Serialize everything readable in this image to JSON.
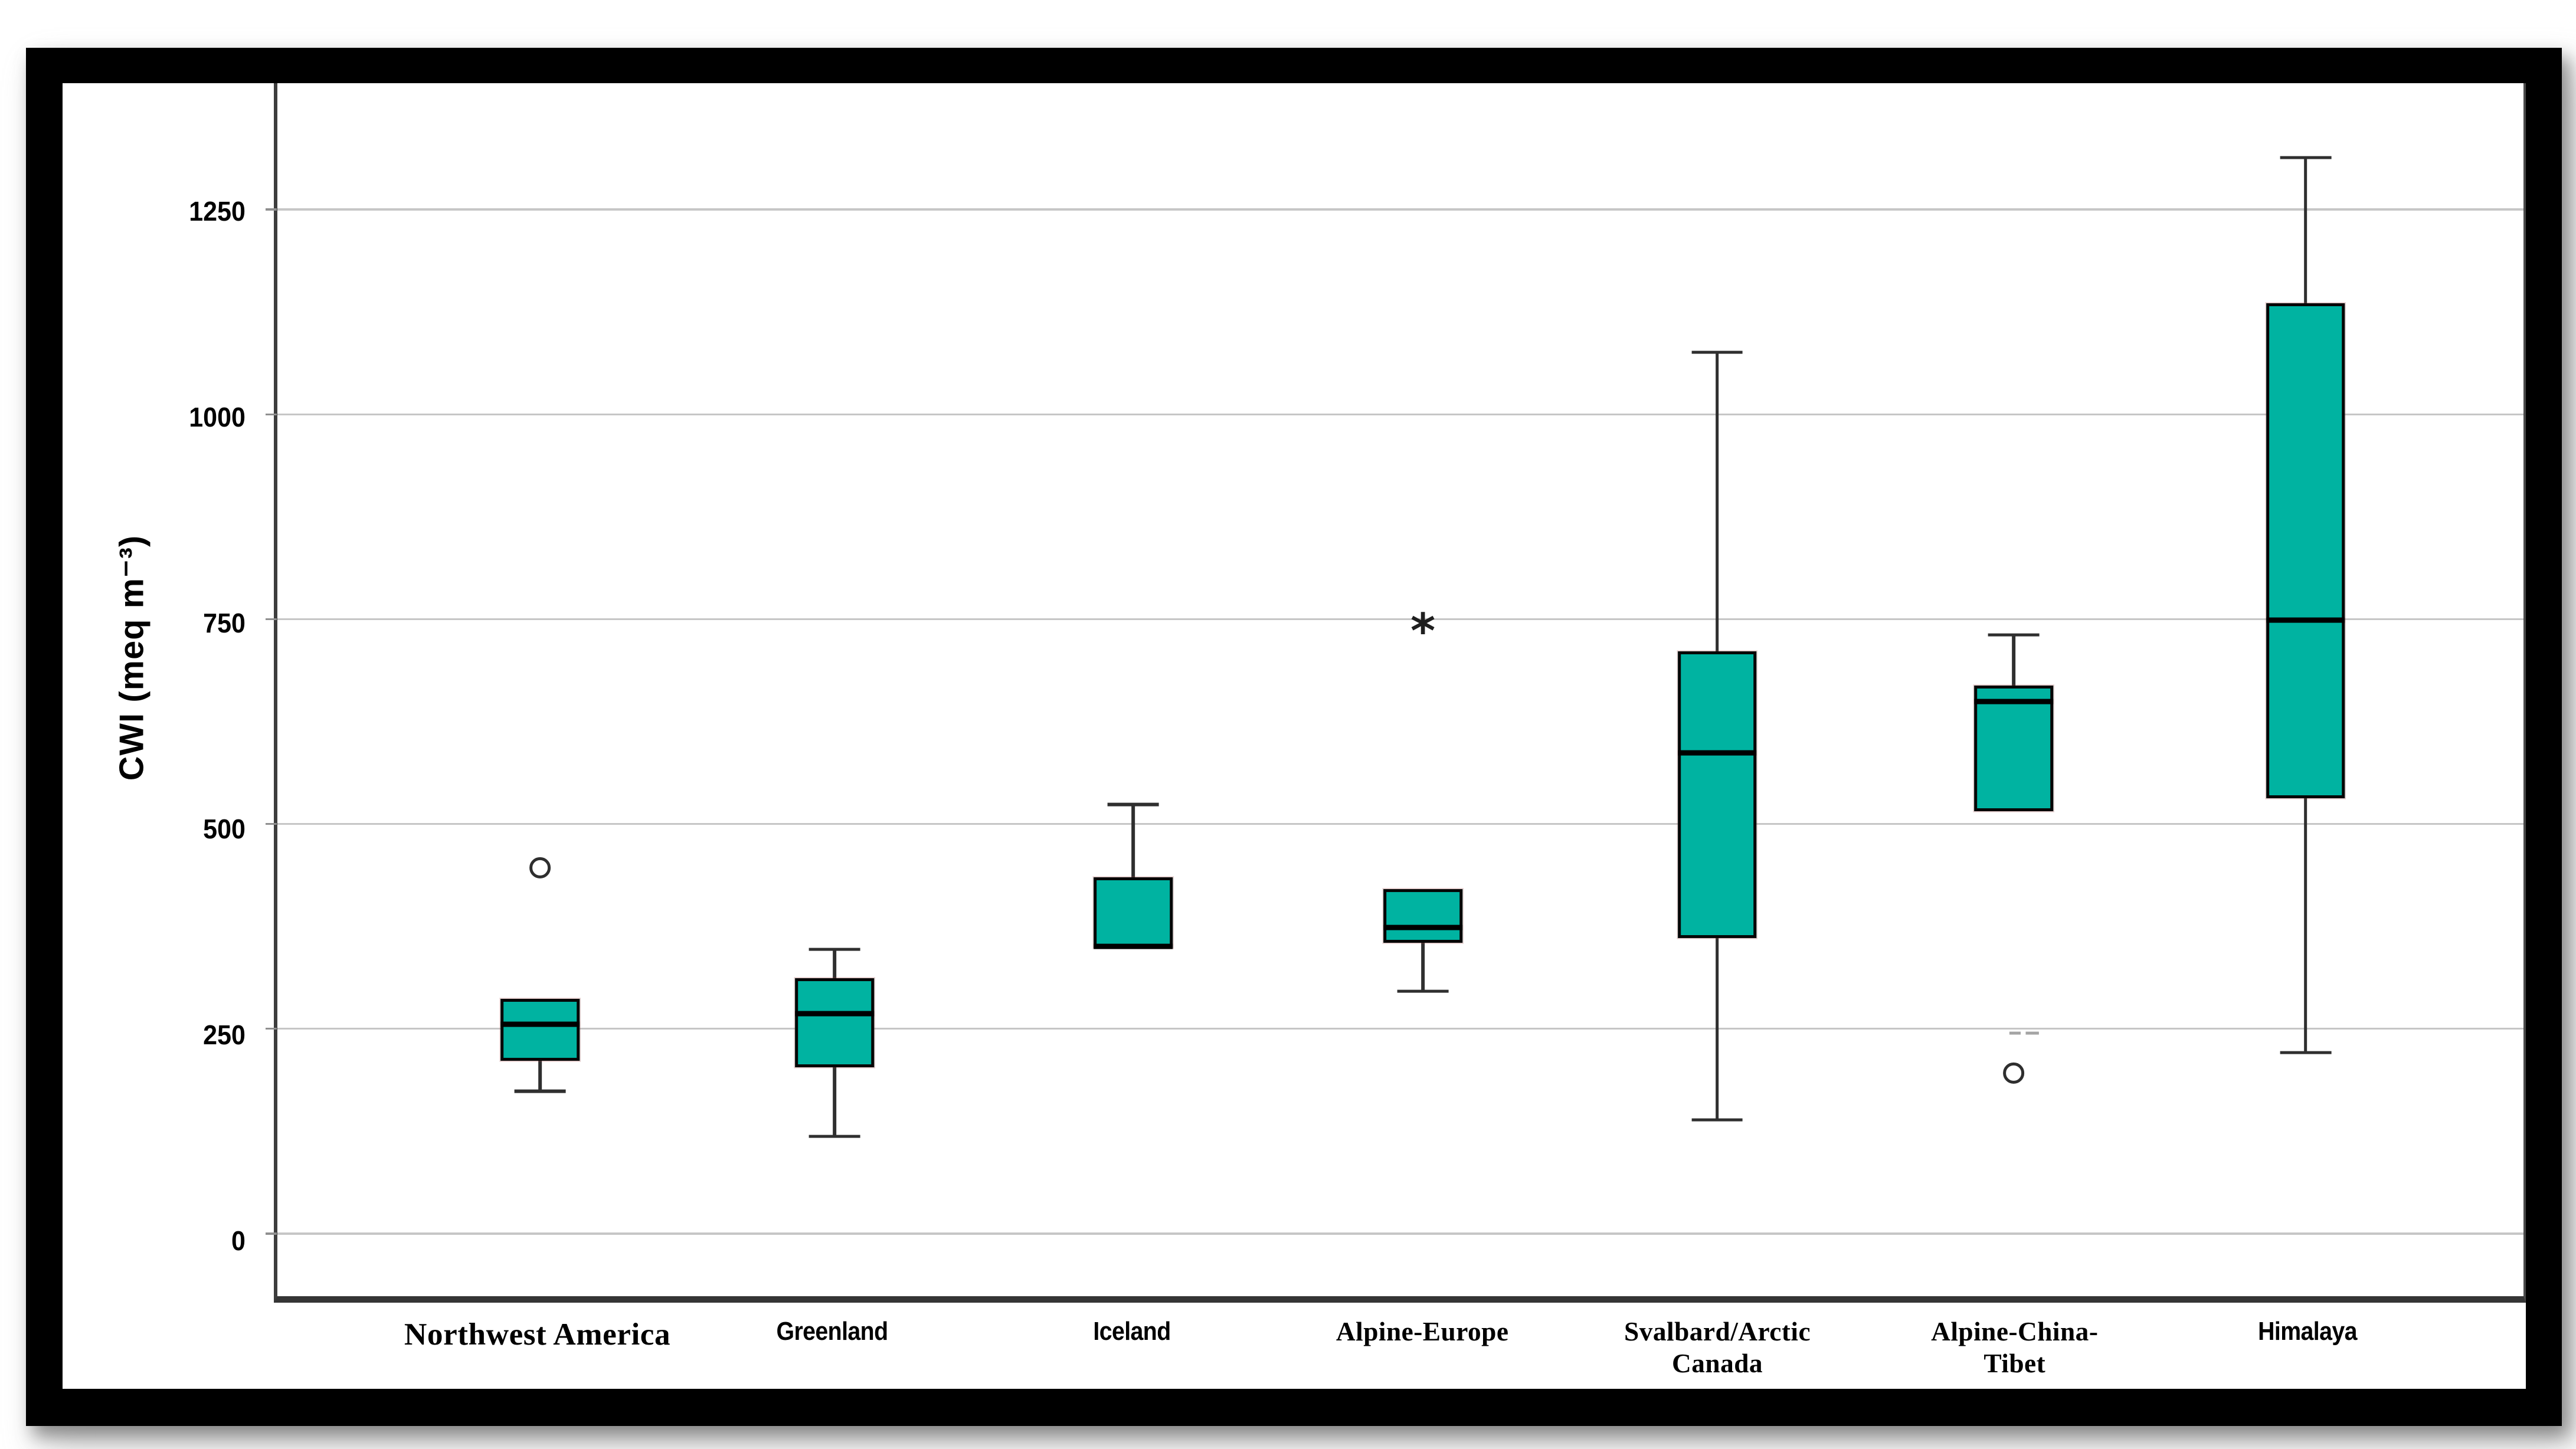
{
  "figure": {
    "background": "#ffffff",
    "frame_color": "#000000",
    "shadow_color": "#9a9a9a"
  },
  "chart_data": {
    "type": "boxplot",
    "title": "",
    "xlabel": "",
    "ylabel": "CWI (meq m⁻³)",
    "grid": true,
    "legend": "none",
    "box_fill": "#00b3a1",
    "box_border": "#000000",
    "grid_color": "#c6c6c6",
    "y_ticks": [
      0,
      250,
      500,
      750,
      1000,
      1250
    ],
    "y_tick_labels": [
      "0",
      "250",
      "500",
      "750",
      "1000",
      "1250"
    ],
    "value_range": {
      "min": -75,
      "max": 1406
    },
    "categories": [
      "Northwest America",
      "Greenland",
      "Iceland",
      "Alpine-Europe",
      "Svalbard/Arctic\nCanada",
      "Alpine-China-\nTibet",
      "Himalaya"
    ],
    "slot_centers_pct": [
      11.7,
      24.8,
      38.1,
      51.0,
      64.1,
      77.3,
      90.3
    ],
    "series": [
      {
        "label": "Northwest America",
        "whisker_low": 175,
        "q1": 212,
        "median": 257,
        "q3": 288,
        "whisker_high": null,
        "outliers": [
          {
            "type": "circle",
            "value": 448
          }
        ]
      },
      {
        "label": "Greenland",
        "whisker_low": 120,
        "q1": 204,
        "median": 270,
        "q3": 313,
        "whisker_high": 348,
        "outliers": []
      },
      {
        "label": "Iceland",
        "whisker_low": null,
        "q1": 350,
        "median": 352,
        "q3": 436,
        "whisker_high": 525,
        "outliers": []
      },
      {
        "label": "Alpine-Europe",
        "whisker_low": 297,
        "q1": 356,
        "median": 375,
        "q3": 422,
        "whisker_high": null,
        "outliers": [
          {
            "type": "star",
            "value": 733
          }
        ]
      },
      {
        "label": "Svalbard/Arctic Canada",
        "whisker_low": 140,
        "q1": 362,
        "median": 588,
        "q3": 712,
        "whisker_high": 1077,
        "outliers": []
      },
      {
        "label": "Alpine-China-Tibet",
        "whisker_low": null,
        "q1": 517,
        "median": 651,
        "q3": 670,
        "whisker_high": 732,
        "outliers": [
          {
            "type": "circle",
            "value": 197
          },
          {
            "type": "dash",
            "value": 246
          }
        ]
      },
      {
        "label": "Himalaya",
        "whisker_low": 222,
        "q1": 533,
        "median": 750,
        "q3": 1137,
        "whisker_high": 1315,
        "outliers": []
      }
    ]
  }
}
